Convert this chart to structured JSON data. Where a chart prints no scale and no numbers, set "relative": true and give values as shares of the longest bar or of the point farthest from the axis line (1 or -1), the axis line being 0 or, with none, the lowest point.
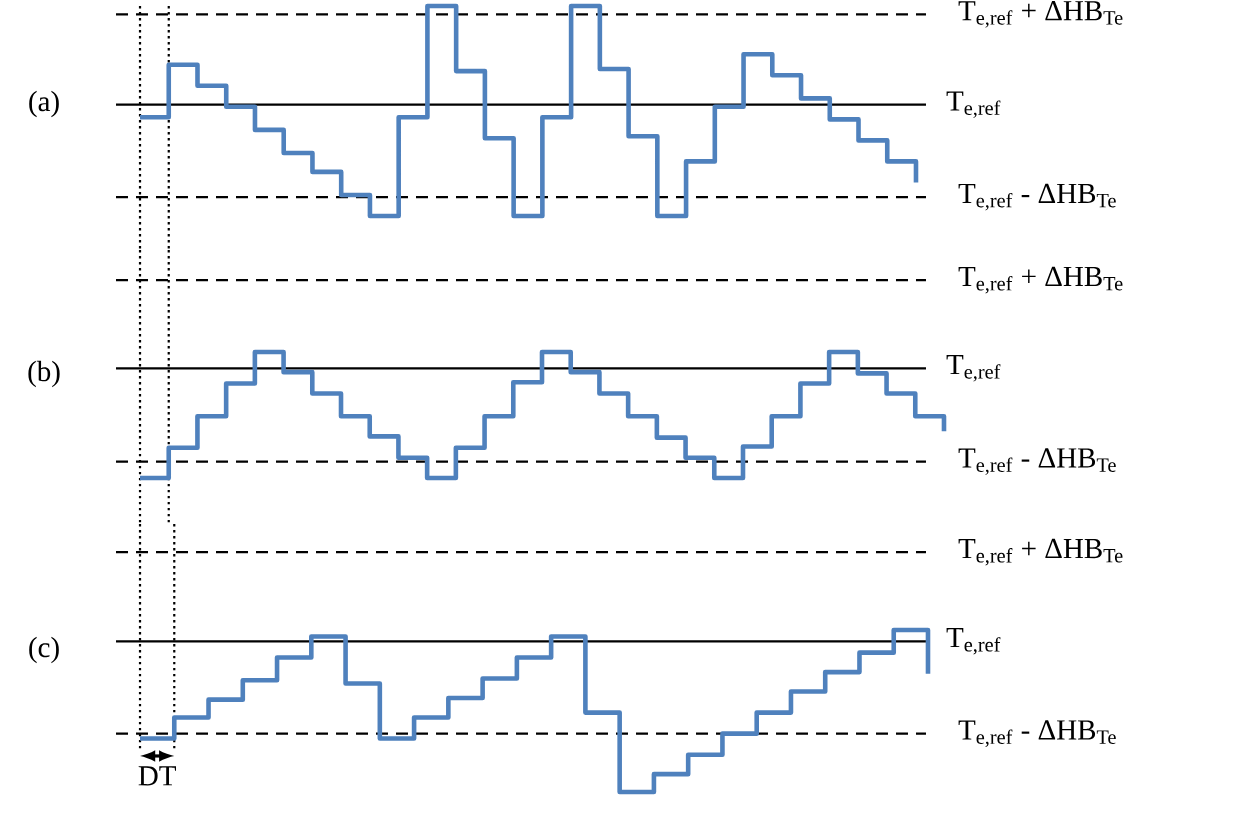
{
  "chart_data": [
    {
      "type": "step",
      "relative": true,
      "tick_labels": false,
      "title": "(a)",
      "color": "#4f81bd",
      "categories": [
        null,
        null,
        null,
        null,
        null,
        null,
        null,
        null,
        null,
        null,
        null,
        null,
        null,
        null,
        null,
        null,
        null,
        null,
        null,
        null,
        null,
        null,
        null,
        null,
        null,
        null,
        null,
        null
      ],
      "values": [
        0.47,
        0.72,
        0.62,
        0.52,
        0.41,
        0.3,
        0.21,
        0.1,
        0,
        0.47,
        1,
        0.69,
        0.37,
        0,
        0.47,
        1,
        0.7,
        0.38,
        0,
        0.26,
        0.52,
        0.77,
        0.67,
        0.56,
        0.46,
        0.36,
        0.26,
        0.16
      ],
      "ref_lines": [
        {
          "axis": "y",
          "value": 0.96,
          "label": "T$_{e,ref}$ + ΔHB$_{Te}$",
          "line_style": "dashed"
        },
        {
          "axis": "y",
          "value": 0.53,
          "label": "T$_{e,ref}$",
          "line_style": "solid"
        },
        {
          "axis": "y",
          "value": 0.09,
          "label": "T$_{e,ref}$ - ΔHB$_{Te}$",
          "line_style": "dashed"
        }
      ]
    },
    {
      "type": "step",
      "relative": true,
      "tick_labels": false,
      "title": "(b)",
      "color": "#4f81bd",
      "categories": [
        null,
        null,
        null,
        null,
        null,
        null,
        null,
        null,
        null,
        null,
        null,
        null,
        null,
        null,
        null,
        null,
        null,
        null,
        null,
        null,
        null,
        null,
        null,
        null,
        null,
        null,
        null,
        null,
        null
      ],
      "values": [
        0,
        0.24,
        0.49,
        0.75,
        1,
        0.84,
        0.67,
        0.49,
        0.33,
        0.16,
        0,
        0.24,
        0.49,
        0.76,
        1,
        0.84,
        0.67,
        0.49,
        0.32,
        0.16,
        0,
        0.25,
        0.49,
        0.75,
        1,
        0.83,
        0.67,
        0.49,
        0.37
      ],
      "ref_lines": [
        {
          "axis": "y",
          "value": 1.57,
          "label": "T$_{e,ref}$ + ΔHB$_{Te}$",
          "line_style": "dashed"
        },
        {
          "axis": "y",
          "value": 0.87,
          "label": "T$_{e,ref}$",
          "line_style": "solid"
        },
        {
          "axis": "y",
          "value": 0.13,
          "label": "T$_{e,ref}$ - ΔHB$_{Te}$",
          "line_style": "dashed"
        }
      ]
    },
    {
      "type": "step",
      "relative": true,
      "tick_labels": false,
      "title": "(c)",
      "color": "#4f81bd",
      "categories": [
        null,
        null,
        null,
        null,
        null,
        null,
        null,
        null,
        null,
        null,
        null,
        null,
        null,
        null,
        null,
        null,
        null,
        null,
        null,
        null,
        null,
        null,
        null,
        null
      ],
      "values": [
        0.33,
        0.46,
        0.57,
        0.69,
        0.83,
        0.96,
        0.67,
        0.33,
        0.46,
        0.58,
        0.7,
        0.83,
        0.96,
        0.49,
        0,
        0.11,
        0.23,
        0.36,
        0.49,
        0.62,
        0.74,
        0.86,
        1,
        0.73
      ],
      "ref_lines": [
        {
          "axis": "y",
          "value": 1.48,
          "label": "T$_{e,ref}$ + ΔHB$_{Te}$",
          "line_style": "dashed"
        },
        {
          "axis": "y",
          "value": 0.93,
          "label": "T$_{e,ref}$",
          "line_style": "solid"
        },
        {
          "axis": "y",
          "value": 0.36,
          "label": "T$_{e,ref}$ - ΔHB$_{Te}$",
          "line_style": "dashed"
        }
      ],
      "annotations": [
        "DT"
      ]
    }
  ]
}
